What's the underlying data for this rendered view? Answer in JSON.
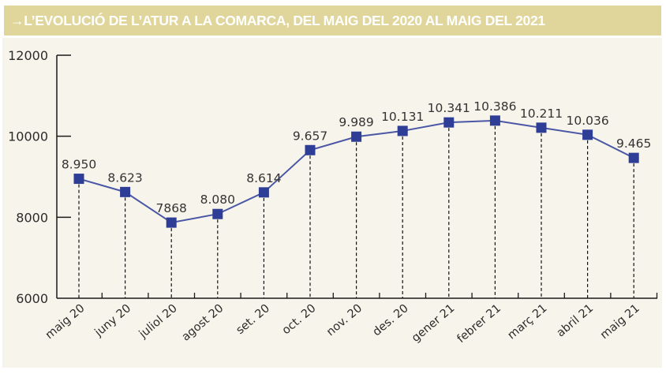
{
  "header": {
    "arrow": "→",
    "title": "L’EVOLUCIÓ DE L’ATUR A LA COMARCA, DEL MAIG DEL 2020 AL MAIG DEL 2021"
  },
  "colors": {
    "title_band": "#e0d69b",
    "title_text": "#ffffff",
    "panel_background": "#f7f5eb",
    "series_line": "#4a56a6",
    "marker": "#2e3d96",
    "axis": "#1a1a1a",
    "text": "#2b2b2b"
  },
  "chart_data": {
    "type": "line",
    "title": "L’EVOLUCIÓ DE L’ATUR A LA COMARCA, DEL MAIG DEL 2020 AL MAIG DEL 2021",
    "xlabel": "",
    "ylabel": "",
    "ylim": [
      6000,
      12000
    ],
    "yticks": [
      6000,
      8000,
      10000,
      12000
    ],
    "ytick_labels": [
      "6000",
      "8000",
      "10000",
      "12000"
    ],
    "grid": false,
    "legend": "none",
    "marker": "square",
    "drop_lines": "dashed vertical from each point to x-axis",
    "categories": [
      "maig 20",
      "juny 20",
      "juliol 20",
      "agost 20",
      "set. 20",
      "oct. 20",
      "nov. 20",
      "des. 20",
      "gener 21",
      "febrer 21",
      "març 21",
      "abril 21",
      "maig 21"
    ],
    "series": [
      {
        "name": "Atur",
        "values": [
          8950,
          8623,
          7868,
          8080,
          8614,
          9657,
          9989,
          10131,
          10341,
          10386,
          10211,
          10036,
          9465
        ],
        "labels": [
          "8.950",
          "8.623",
          "7868",
          "8.080",
          "8.614",
          "9.657",
          "9.989",
          "10.131",
          "10.341",
          "10.386",
          "10.211",
          "10.036",
          "9.465"
        ]
      }
    ]
  }
}
